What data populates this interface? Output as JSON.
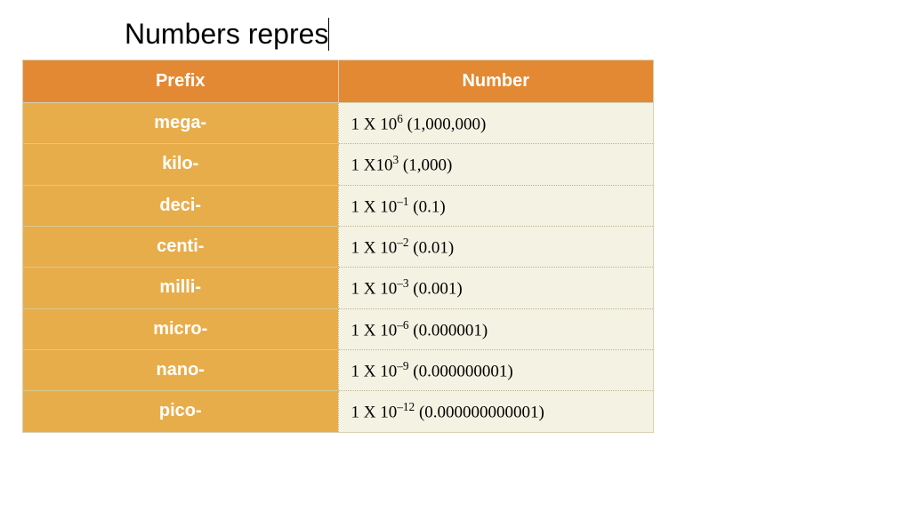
{
  "title": "Numbers repres",
  "table": {
    "columns": [
      "Prefix",
      "Number"
    ],
    "header_bg": "#e38933",
    "header_fg": "#ffffff",
    "prefix_cell_bg": "#e8ad4b",
    "prefix_cell_fg": "#ffffff",
    "number_cell_bg": "#f4f2e3",
    "number_cell_fg": "#000000",
    "border_color": "#d9d0b6",
    "dotted_border_color": "#bdb58f",
    "header_fontsize": 20,
    "cell_fontsize": 19,
    "rows": [
      {
        "prefix": "mega-",
        "base": "1 X 10",
        "exp": "6",
        "decimal": "(1,000,000)"
      },
      {
        "prefix": "kilo-",
        "base": "1 X10",
        "exp": "3",
        "decimal": "(1,000)"
      },
      {
        "prefix": "deci-",
        "base": "1 X 10",
        "exp": "–1",
        "decimal": "(0.1)"
      },
      {
        "prefix": "centi-",
        "base": "1 X 10",
        "exp": "–2",
        "decimal": "(0.01)"
      },
      {
        "prefix": "milli-",
        "base": "1 X 10",
        "exp": "–3",
        "decimal": "(0.001)"
      },
      {
        "prefix": "micro-",
        "base": "1 X 10",
        "exp": "–6",
        "decimal": "(0.000001)"
      },
      {
        "prefix": "nano-",
        "base": "1 X 10",
        "exp": "–9",
        "decimal": "(0.000000001)"
      },
      {
        "prefix": "pico-",
        "base": "1 X 10",
        "exp": "–12",
        "decimal": "(0.000000000001)"
      }
    ]
  }
}
